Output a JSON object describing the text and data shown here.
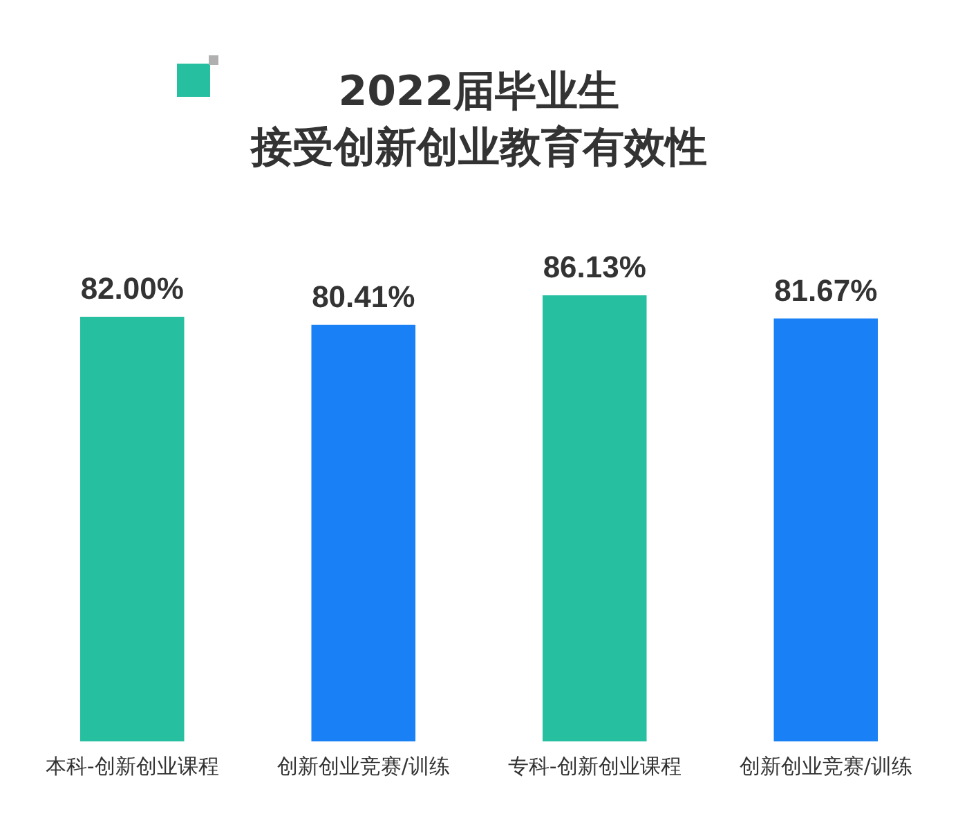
{
  "chart_data": {
    "type": "bar",
    "title": "2022届毕业生",
    "subtitle": "接受创新创业教育有效性",
    "tick_labels": "x",
    "categories": [
      "本科-创新创业课程",
      "创新创业竞赛/训练",
      "专科-创新创业课程",
      "创新创业竞赛/训练"
    ],
    "values": [
      82.0,
      80.41,
      86.13,
      81.67
    ],
    "value_labels": [
      "82.00%",
      "80.41%",
      "86.13%",
      "81.67%"
    ],
    "colors": [
      "#26bfa0",
      "#1a80f5",
      "#26bfa0",
      "#1a80f5"
    ],
    "grid": false,
    "legend": false
  }
}
